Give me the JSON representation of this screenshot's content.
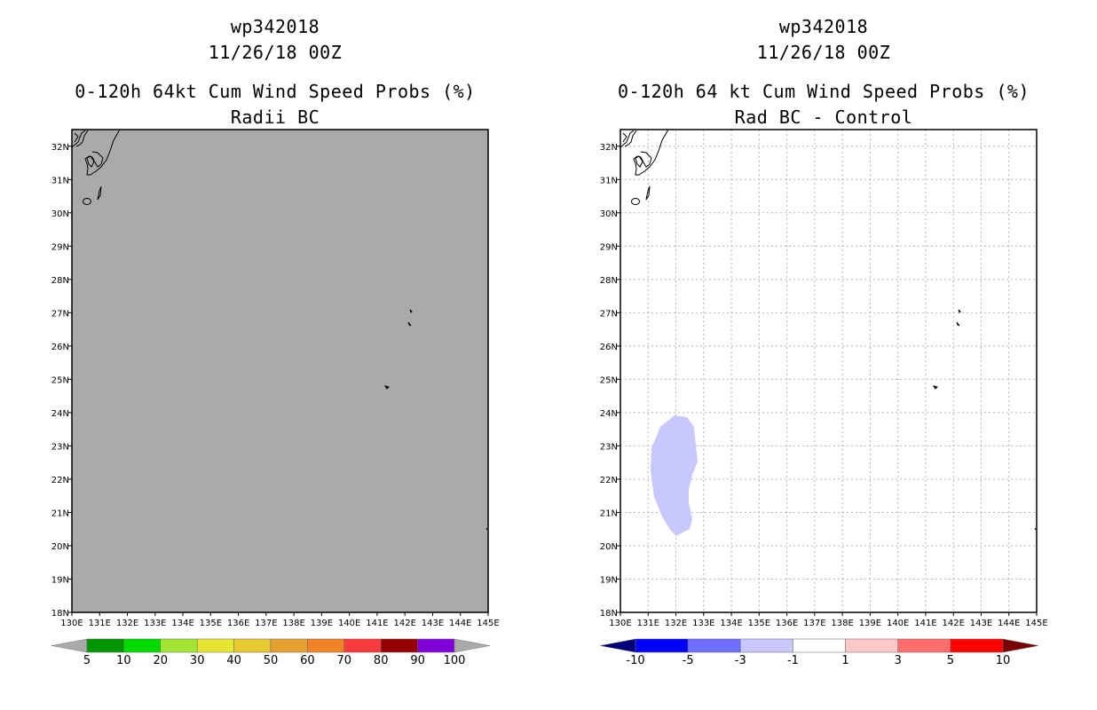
{
  "left_panel": {
    "storm_id": "wp342018",
    "datetime": "11/26/18 00Z",
    "product": "0-120h 64kt Cum Wind Speed Probs (%)",
    "subtitle": "Radii BC",
    "field_color": "#aaaaaa",
    "colorbar": {
      "labels": [
        "5",
        "10",
        "20",
        "30",
        "40",
        "50",
        "60",
        "70",
        "80",
        "90",
        "100"
      ],
      "colors": [
        "#aaaaaa",
        "#009600",
        "#00dc00",
        "#a0e632",
        "#e6e632",
        "#e6c832",
        "#e6a032",
        "#f08228",
        "#fa3c3c",
        "#960000",
        "#8200dc",
        "#aaaaaa"
      ]
    }
  },
  "right_panel": {
    "storm_id": "wp342018",
    "datetime": "11/26/18 00Z",
    "product": "0-120h 64 kt Cum Wind Speed Probs (%)",
    "subtitle": "Rad BC - Control",
    "shade_color": "#c8c8ff",
    "colorbar": {
      "labels": [
        "-10",
        "-5",
        "-3",
        "-1",
        "1",
        "3",
        "5",
        "10"
      ],
      "colors": [
        "#000078",
        "#0000ff",
        "#6e6eff",
        "#c8c8ff",
        "#ffffff",
        "#ffc8c8",
        "#ff6e6e",
        "#ff0000",
        "#780000"
      ]
    }
  },
  "axes": {
    "lat_labels": [
      "32N",
      "31N",
      "30N",
      "29N",
      "28N",
      "27N",
      "26N",
      "25N",
      "24N",
      "23N",
      "22N",
      "21N",
      "20N",
      "19N",
      "18N"
    ],
    "lon_labels": [
      "130E",
      "131E",
      "132E",
      "133E",
      "134E",
      "135E",
      "136E",
      "137E",
      "138E",
      "139E",
      "140E",
      "141E",
      "142E",
      "143E",
      "144E",
      "145E"
    ]
  }
}
